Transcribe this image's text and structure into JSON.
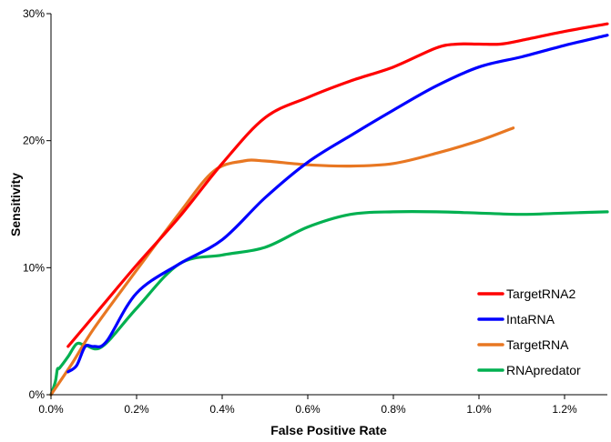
{
  "chart_data": {
    "type": "line",
    "xlabel": "False Positive Rate",
    "ylabel": "Sensitivity",
    "xlim": [
      0,
      1.3
    ],
    "ylim": [
      0,
      30
    ],
    "x_ticks": [
      0,
      0.2,
      0.4,
      0.6,
      0.8,
      1.0,
      1.2
    ],
    "x_tick_labels": [
      "0.0%",
      "0.2%",
      "0.4%",
      "0.6%",
      "0.8%",
      "1.0%",
      "1.2%"
    ],
    "y_ticks": [
      0,
      10,
      20,
      30
    ],
    "y_tick_labels": [
      "0%",
      "10%",
      "20%",
      "30%"
    ],
    "grid": false,
    "legend_position": "bottom-right",
    "series": [
      {
        "name": "TargetRNA2",
        "color": "#ff0000",
        "x": [
          0.04,
          0.1,
          0.2,
          0.3,
          0.4,
          0.5,
          0.6,
          0.7,
          0.8,
          0.9,
          0.95,
          1.0,
          1.05,
          1.1,
          1.2,
          1.3
        ],
        "y": [
          3.8,
          6.2,
          10.2,
          14.0,
          18.2,
          21.8,
          23.4,
          24.7,
          25.8,
          27.3,
          27.6,
          27.6,
          27.6,
          27.9,
          28.6,
          29.2
        ]
      },
      {
        "name": "IntaRNA",
        "color": "#0000ff",
        "x": [
          0.04,
          0.06,
          0.08,
          0.1,
          0.13,
          0.2,
          0.3,
          0.4,
          0.5,
          0.6,
          0.7,
          0.8,
          0.9,
          1.0,
          1.1,
          1.2,
          1.3
        ],
        "y": [
          1.8,
          2.3,
          3.8,
          3.8,
          4.2,
          8.0,
          10.3,
          12.2,
          15.5,
          18.3,
          20.4,
          22.4,
          24.3,
          25.8,
          26.6,
          27.5,
          28.3
        ]
      },
      {
        "name": "TargetRNA",
        "color": "#e87722",
        "x": [
          0.0,
          0.05,
          0.1,
          0.2,
          0.3,
          0.38,
          0.45,
          0.5,
          0.6,
          0.7,
          0.8,
          0.9,
          1.0,
          1.08
        ],
        "y": [
          0.0,
          2.5,
          5.2,
          9.8,
          14.3,
          17.6,
          18.4,
          18.4,
          18.1,
          18.0,
          18.2,
          19.0,
          20.0,
          21.0
        ]
      },
      {
        "name": "RNApredator",
        "color": "#00b050",
        "x": [
          0.0,
          0.01,
          0.015,
          0.02,
          0.04,
          0.06,
          0.08,
          0.12,
          0.2,
          0.3,
          0.4,
          0.5,
          0.6,
          0.7,
          0.8,
          0.9,
          1.0,
          1.1,
          1.2,
          1.3
        ],
        "y": [
          0.0,
          1.0,
          2.0,
          2.1,
          3.0,
          4.0,
          3.9,
          3.8,
          6.8,
          10.3,
          11.0,
          11.6,
          13.2,
          14.2,
          14.4,
          14.4,
          14.3,
          14.2,
          14.3,
          14.4
        ]
      }
    ]
  }
}
